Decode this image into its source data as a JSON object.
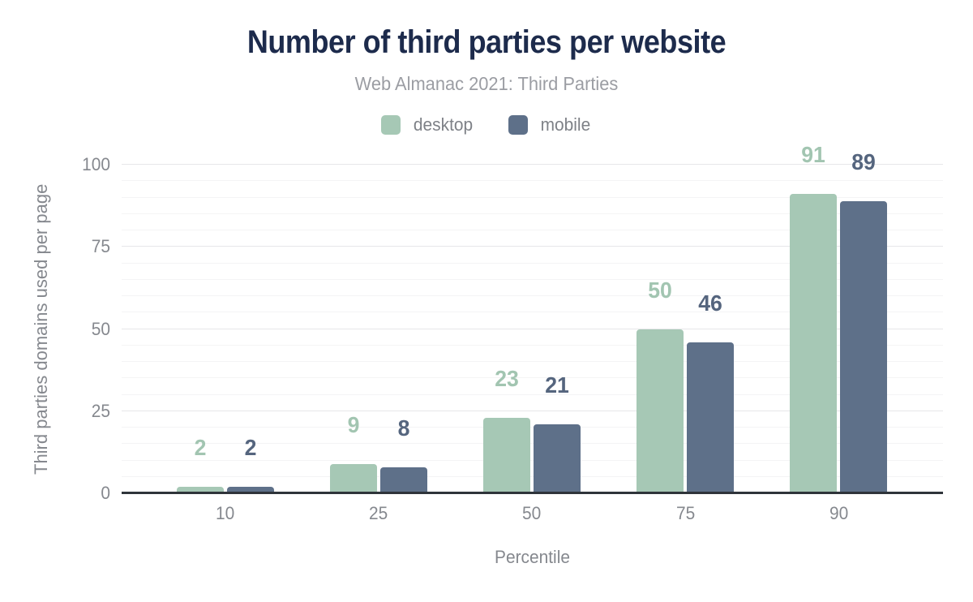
{
  "header": {
    "title": "Number of third parties per website",
    "subtitle": "Web Almanac 2021: Third Parties"
  },
  "chart_data": {
    "type": "bar",
    "title": "Number of third parties per website",
    "subtitle": "Web Almanac 2021: Third Parties",
    "categories": [
      "10",
      "25",
      "50",
      "75",
      "90"
    ],
    "series": [
      {
        "name": "desktop",
        "color": "#a6c8b5",
        "label_color": "#a2c5b1",
        "values": [
          2,
          9,
          23,
          50,
          91
        ]
      },
      {
        "name": "mobile",
        "color": "#5e7089",
        "label_color": "#55657e",
        "values": [
          2,
          8,
          21,
          46,
          89
        ]
      }
    ],
    "xlabel": "Percentile",
    "ylabel": "Third parties domains used per page",
    "ylim": [
      0,
      100
    ],
    "yticks": [
      0,
      25,
      50,
      75,
      100
    ],
    "minor_grid_step": 5,
    "major_grid_step": 25,
    "grid": true,
    "legend_position": "top",
    "data_labels_shown": true
  }
}
